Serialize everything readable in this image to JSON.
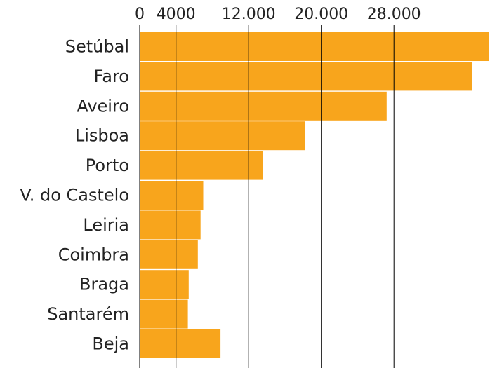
{
  "chart_data": {
    "type": "bar",
    "orientation": "horizontal",
    "categories": [
      "Setúbal",
      "Faro",
      "Aveiro",
      "Lisboa",
      "Porto",
      "V. do Castelo",
      "Leiria",
      "Coimbra",
      "Braga",
      "Santarém",
      "Beja"
    ],
    "values": [
      38500,
      36600,
      27200,
      18200,
      13600,
      7000,
      6700,
      6400,
      5400,
      5300,
      8900
    ],
    "xticks": [
      0,
      4000,
      12000,
      20000,
      28000
    ],
    "xtick_labels": [
      "0",
      "4000",
      "12.000",
      "20.000",
      "28.000"
    ],
    "xlim": [
      0,
      38500
    ],
    "grid": "vertical lines at ticks",
    "bar_color": "#F8A51C",
    "title": "",
    "xlabel": "",
    "ylabel": ""
  }
}
